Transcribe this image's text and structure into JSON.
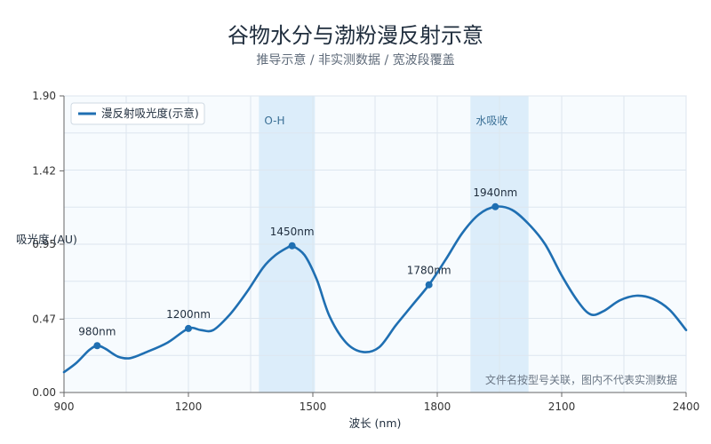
{
  "title": "谷物水分与渤粉漫反射示意",
  "subtitle": "推导示意 / 非实测数据 / 宽波段覆盖",
  "colors": {
    "line": "#1f6fb2",
    "band": "#dcedfa",
    "plot_bg": "#f7fbfe",
    "grid": "#dde6ef"
  },
  "chart_data": {
    "type": "line",
    "xlabel": "波长 (nm)",
    "ylabel": "吸光度 (AU)",
    "xlim": [
      900,
      2400
    ],
    "ylim": [
      0,
      1.9
    ],
    "x_ticks": [
      900,
      1200,
      1500,
      1800,
      2100,
      2400
    ],
    "y_ticks": [
      0,
      0.47,
      0.95,
      1.42,
      1.9
    ],
    "y_tick_labels": [
      "0.00",
      "0.47",
      "0.95",
      "1.42",
      "1.90"
    ],
    "grid": true,
    "legend_position": "top-left",
    "series": [
      {
        "name": "漫反射吸光度(示意)",
        "x": [
          900,
          930,
          960,
          980,
          1000,
          1030,
          1060,
          1100,
          1150,
          1200,
          1230,
          1260,
          1300,
          1340,
          1380,
          1410,
          1440,
          1450,
          1480,
          1510,
          1540,
          1580,
          1620,
          1660,
          1700,
          1740,
          1780,
          1820,
          1860,
          1900,
          1940,
          1980,
          2020,
          2060,
          2100,
          2140,
          2170,
          2200,
          2240,
          2280,
          2320,
          2360,
          2400
        ],
        "y": [
          0.13,
          0.19,
          0.27,
          0.3,
          0.28,
          0.23,
          0.22,
          0.26,
          0.32,
          0.41,
          0.4,
          0.4,
          0.5,
          0.64,
          0.8,
          0.88,
          0.93,
          0.94,
          0.88,
          0.72,
          0.49,
          0.32,
          0.26,
          0.29,
          0.43,
          0.56,
          0.69,
          0.85,
          1.02,
          1.14,
          1.19,
          1.17,
          1.08,
          0.95,
          0.75,
          0.58,
          0.5,
          0.52,
          0.59,
          0.62,
          0.6,
          0.53,
          0.4
        ]
      }
    ],
    "bands": [
      {
        "label": "O-H",
        "x_from": 1370,
        "x_to": 1505
      },
      {
        "label": "水吸收",
        "x_from": 1880,
        "x_to": 2020
      }
    ],
    "peaks": [
      {
        "label": "980nm",
        "x": 980,
        "y": 0.3
      },
      {
        "label": "1200nm",
        "x": 1200,
        "y": 0.41
      },
      {
        "label": "1450nm",
        "x": 1450,
        "y": 0.94
      },
      {
        "label": "1780nm",
        "x": 1780,
        "y": 0.69
      },
      {
        "label": "1940nm",
        "x": 1940,
        "y": 1.19
      }
    ],
    "note": "文件名按型号关联，图内不代表实测数据"
  }
}
